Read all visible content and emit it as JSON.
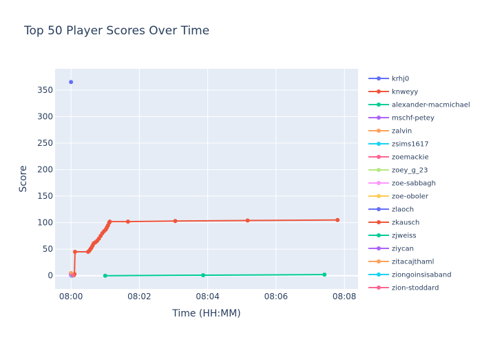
{
  "chart_data": {
    "type": "line",
    "title": "Top 50 Player Scores Over Time",
    "xlabel": "Time (HH:MM)",
    "ylabel": "Score",
    "xlim": [
      "07:59:32",
      "08:08:24"
    ],
    "ylim": [
      -25,
      390
    ],
    "x_ticks": [
      "08:00",
      "08:02",
      "08:04",
      "08:06",
      "08:08"
    ],
    "y_ticks": [
      0,
      50,
      100,
      150,
      200,
      250,
      300,
      350
    ],
    "grid": true,
    "legend_position": "right",
    "series": [
      {
        "name": "krhj0",
        "color": "#636efa",
        "points": [
          [
            "08:00:00",
            365
          ]
        ]
      },
      {
        "name": "knweyy",
        "color": "#ef553b",
        "points": [
          [
            "08:00:00",
            2
          ],
          [
            "08:00:05",
            1
          ],
          [
            "08:00:06",
            3
          ],
          [
            "08:00:07",
            45
          ],
          [
            "08:00:30",
            45
          ],
          [
            "08:00:32",
            47
          ],
          [
            "08:00:34",
            50
          ],
          [
            "08:00:36",
            53
          ],
          [
            "08:00:38",
            57
          ],
          [
            "08:00:40",
            61
          ],
          [
            "08:00:43",
            63
          ],
          [
            "08:00:46",
            66
          ],
          [
            "08:00:49",
            70
          ],
          [
            "08:00:52",
            75
          ],
          [
            "08:00:55",
            80
          ],
          [
            "08:00:58",
            84
          ],
          [
            "08:01:01",
            87
          ],
          [
            "08:01:03",
            91
          ],
          [
            "08:01:05",
            95
          ],
          [
            "08:01:07",
            100
          ],
          [
            "08:01:08",
            102
          ],
          [
            "08:01:40",
            102
          ],
          [
            "08:03:03",
            103
          ],
          [
            "08:05:10",
            104
          ],
          [
            "08:07:48",
            105
          ]
        ]
      },
      {
        "name": "alexander-macmichael",
        "color": "#00cc96",
        "points": [
          [
            "08:01:00",
            0
          ],
          [
            "08:03:52",
            1
          ],
          [
            "08:07:25",
            2
          ]
        ]
      },
      {
        "name": "mschf-petey",
        "color": "#ab63fa",
        "points": [
          [
            "08:00:00",
            1
          ]
        ]
      },
      {
        "name": "zalvin",
        "color": "#ffa15a",
        "points": [
          [
            "08:00:00",
            5
          ]
        ]
      },
      {
        "name": "zsims1617",
        "color": "#19d3f3",
        "points": [
          [
            "08:00:01",
            0
          ]
        ]
      },
      {
        "name": "zoemackie",
        "color": "#ff6692",
        "points": [
          [
            "08:00:01",
            1
          ]
        ]
      },
      {
        "name": "zoey_g_23",
        "color": "#b6e880",
        "points": [
          [
            "08:00:02",
            0
          ]
        ]
      },
      {
        "name": "zoe-sabbagh",
        "color": "#ff97ff",
        "points": [
          [
            "08:00:00",
            0
          ]
        ]
      },
      {
        "name": "zoe-oboler",
        "color": "#fecb52",
        "points": [
          [
            "08:00:01",
            2
          ]
        ]
      },
      {
        "name": "zlaoch",
        "color": "#636efa",
        "points": [
          [
            "08:00:02",
            1
          ]
        ]
      },
      {
        "name": "zkausch",
        "color": "#ef553b",
        "points": [
          [
            "08:00:01",
            3
          ]
        ]
      },
      {
        "name": "zjweiss",
        "color": "#00cc96",
        "points": [
          [
            "08:00:02",
            2
          ]
        ]
      },
      {
        "name": "ziycan",
        "color": "#ab63fa",
        "points": [
          [
            "08:00:00",
            3
          ]
        ]
      },
      {
        "name": "zitacajthaml",
        "color": "#ffa15a",
        "points": [
          [
            "08:00:01",
            4
          ]
        ]
      },
      {
        "name": "ziongoinsisaband",
        "color": "#19d3f3",
        "points": [
          [
            "08:00:02",
            0
          ]
        ]
      },
      {
        "name": "zion-stoddard",
        "color": "#ff6692",
        "points": [
          [
            "08:00:03",
            1
          ]
        ]
      }
    ]
  }
}
